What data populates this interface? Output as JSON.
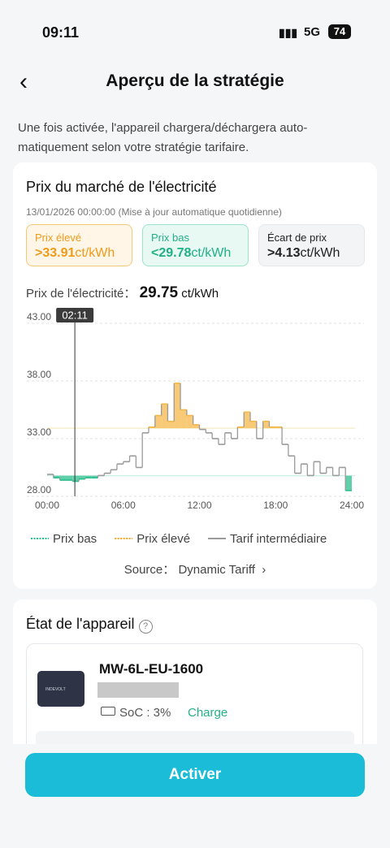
{
  "status_bar": {
    "time": "09:11",
    "network": "5G",
    "battery": "74"
  },
  "header": {
    "title": "Aperçu de la stratégie"
  },
  "description": "Une fois activée, l'appareil chargera/déchargera auto-matiquement selon votre stratégie tarifaire.",
  "market": {
    "title": "Prix du marché de l'électricité",
    "date": "13/01/2026 00:00:00",
    "update_note": "(Mise à jour automatique quotidienne)",
    "cards": [
      {
        "label": "Prix élevé",
        "value": ">33.91",
        "unit": "ct/kWh"
      },
      {
        "label": "Prix bas",
        "value": "<29.78",
        "unit": "ct/kWh"
      },
      {
        "label": "Écart de prix",
        "value": ">4.13",
        "unit": "ct/kWh"
      }
    ],
    "current": {
      "label": "Prix de l'électricité：",
      "value": "29.75",
      "unit": "ct/kWh"
    },
    "source": {
      "label": "Source：",
      "value": "Dynamic Tariff"
    }
  },
  "chart_data": {
    "type": "step",
    "x": [
      0,
      0.5,
      1,
      1.5,
      2,
      2.5,
      3,
      3.5,
      4,
      4.5,
      5,
      5.5,
      6,
      6.5,
      7,
      7.5,
      8,
      8.5,
      9,
      9.5,
      10,
      10.5,
      11,
      11.5,
      12,
      12.5,
      13,
      13.5,
      14,
      14.5,
      15,
      15.5,
      16,
      16.5,
      17,
      17.5,
      18,
      18.5,
      19,
      19.5,
      20,
      20.5,
      21,
      21.5,
      22,
      22.5,
      23,
      23.5
    ],
    "series": [
      {
        "name": "Tarif intermédiaire",
        "color": "#9a9a9a",
        "values": [
          29.9,
          29.6,
          29.4,
          29.4,
          29.3,
          29.5,
          29.6,
          29.6,
          29.8,
          30.0,
          30.3,
          30.8,
          31.0,
          31.5,
          30.5,
          33.5,
          34.0,
          35.0,
          36.0,
          34.5,
          37.8,
          35.5,
          35.0,
          34.2,
          33.8,
          33.5,
          33.0,
          32.5,
          33.5,
          33.0,
          34.0,
          35.3,
          34.5,
          33.0,
          34.5,
          34.0,
          34.0,
          32.5,
          31.5,
          30.0,
          30.8,
          29.8,
          31.0,
          30.0,
          30.5,
          29.8,
          30.5,
          28.5
        ]
      }
    ],
    "thresholds": {
      "high": 33.91,
      "low": 29.78,
      "high_color": "#f5b84a",
      "low_color": "#2bbf8e"
    },
    "xlim": [
      0,
      24
    ],
    "xticks": [
      {
        "value": 0,
        "label": "00:00"
      },
      {
        "value": 6,
        "label": "06:00"
      },
      {
        "value": 12,
        "label": "12:00"
      },
      {
        "value": 18,
        "label": "18:00"
      },
      {
        "value": 24,
        "label": "24:00"
      }
    ],
    "ylim": [
      28,
      43
    ],
    "yticks": [
      {
        "value": 28,
        "label": "28.00"
      },
      {
        "value": 33,
        "label": "33.00"
      },
      {
        "value": 38,
        "label": "38.00"
      },
      {
        "value": 43,
        "label": "43.00"
      }
    ],
    "grid": true,
    "cursor": {
      "x": 2.1833,
      "label": "02:11"
    },
    "legend": [
      {
        "name": "Prix bas",
        "color": "#2bbf8e"
      },
      {
        "name": "Prix élevé",
        "color": "#f5a623"
      },
      {
        "name": "Tarif intermédiaire",
        "color": "#9a9a9a"
      }
    ]
  },
  "device": {
    "title": "État de l'appareil",
    "name": "MW-6L-EU-1600",
    "brand": "INDEVOLT",
    "soc": "SoC : 3%",
    "state": "Charge"
  },
  "button": "Activer"
}
